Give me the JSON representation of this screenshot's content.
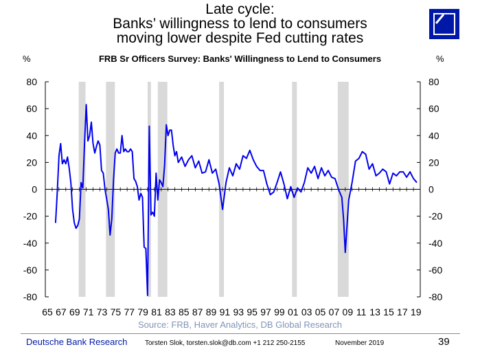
{
  "header": {
    "title_lines": [
      "Late cycle:",
      "Banks’ willingness to lend to consumers",
      "moving lower despite Fed cutting rates"
    ],
    "brand_color": "#0018a8"
  },
  "footer": {
    "brand": "Deutsche Bank Research",
    "contact": "Torsten Slok, torsten.slok@db.com  +1 212 250-2155",
    "date": "November 2019",
    "page": "39"
  },
  "chart_data": {
    "type": "line",
    "title": "FRB Sr Officers Survey: Banks' Willingness to Lend to Consumers",
    "ylabel_left": "%",
    "ylabel_right": "%",
    "source": "Source: FRB, Haver Analytics, DB Global Research",
    "ylim": [
      -80,
      80
    ],
    "yticks": [
      80,
      60,
      40,
      20,
      0,
      -20,
      -40,
      -60,
      -80
    ],
    "xlim": [
      1965,
      2020
    ],
    "xtick_labels": [
      "65",
      "67",
      "69",
      "71",
      "73",
      "75",
      "77",
      "79",
      "81",
      "83",
      "85",
      "87",
      "89",
      "91",
      "93",
      "95",
      "97",
      "99",
      "01",
      "03",
      "05",
      "07",
      "09",
      "11",
      "13",
      "15",
      "17",
      "19"
    ],
    "line_color": "#0000ee",
    "recession_color": "#d9d9d9",
    "recessions": [
      [
        1969.9,
        1970.9
      ],
      [
        1973.9,
        1975.2
      ],
      [
        1980.0,
        1980.5
      ],
      [
        1981.5,
        1982.9
      ],
      [
        1990.5,
        1991.2
      ],
      [
        2001.2,
        2001.9
      ],
      [
        2007.9,
        2009.5
      ]
    ],
    "series": [
      {
        "x": [
          1966.5,
          1966.75,
          1967.0,
          1967.25,
          1967.5,
          1967.75,
          1968.0,
          1968.25,
          1968.5,
          1968.75,
          1969.0,
          1969.25,
          1969.5,
          1969.75,
          1970.0,
          1970.25,
          1970.5,
          1970.75,
          1971.0,
          1971.25,
          1971.5,
          1971.75,
          1972.0,
          1972.25,
          1972.5,
          1972.75,
          1973.0,
          1973.25,
          1973.5,
          1973.75,
          1974.0,
          1974.25,
          1974.5,
          1974.75,
          1975.0,
          1975.25,
          1975.5,
          1975.75,
          1976.0,
          1976.25,
          1976.5,
          1976.75,
          1977.0,
          1977.25,
          1977.5,
          1977.75,
          1978.0,
          1978.25,
          1978.5,
          1978.75,
          1979.0,
          1979.25,
          1979.5,
          1979.75,
          1980.0,
          1980.25,
          1980.5,
          1980.75,
          1981.0,
          1981.25,
          1981.5,
          1981.75,
          1982.0,
          1982.25,
          1982.5,
          1982.75,
          1983.0,
          1983.25,
          1983.5,
          1983.75,
          1984.0,
          1984.25,
          1984.5,
          1984.75,
          1985.0,
          1985.5,
          1986.0,
          1986.5,
          1987.0,
          1987.5,
          1988.0,
          1988.5,
          1989.0,
          1989.5,
          1990.0,
          1990.5,
          1991.0,
          1991.5,
          1992.0,
          1992.5,
          1993.0,
          1993.5,
          1994.0,
          1994.5,
          1995.0,
          1995.5,
          1996.0,
          1996.5,
          1997.0,
          1997.5,
          1998.0,
          1998.5,
          1999.0,
          1999.5,
          2000.0,
          2000.5,
          2001.0,
          2001.5,
          2002.0,
          2002.5,
          2003.0,
          2003.5,
          2004.0,
          2004.5,
          2005.0,
          2005.5,
          2006.0,
          2006.5,
          2007.0,
          2007.5,
          2008.0,
          2008.5,
          2008.75,
          2009.0,
          2009.5,
          2010.0,
          2010.5,
          2011.0,
          2011.5,
          2012.0,
          2012.5,
          2013.0,
          2013.5,
          2014.0,
          2014.5,
          2015.0,
          2015.5,
          2016.0,
          2016.5,
          2017.0,
          2017.5,
          2018.0,
          2018.5,
          2019.0,
          2019.5
        ],
        "y": [
          -25,
          -2,
          25,
          34,
          19,
          22,
          19,
          24,
          16,
          5,
          -15,
          -25,
          -29,
          -27,
          -22,
          5,
          1,
          34,
          63,
          36,
          40,
          50,
          34,
          27,
          32,
          36,
          33,
          14,
          12,
          0,
          -7,
          -15,
          -34,
          -22,
          7,
          27,
          30,
          27,
          27,
          40,
          28,
          30,
          28,
          28,
          30,
          28,
          8,
          6,
          2,
          -8,
          -3,
          -6,
          -43,
          -44,
          -79,
          47,
          -19,
          -17,
          -20,
          12,
          -8,
          7,
          5,
          2,
          18,
          48,
          40,
          44,
          44,
          33,
          25,
          28,
          20,
          22,
          24,
          17,
          22,
          25,
          16,
          21,
          12,
          13,
          22,
          12,
          15,
          4,
          -15,
          5,
          16,
          10,
          19,
          15,
          25,
          23,
          29,
          22,
          17,
          14,
          14,
          4,
          -4,
          -2,
          5,
          13,
          4,
          -7,
          2,
          -6,
          1,
          -2,
          5,
          16,
          12,
          17,
          8,
          16,
          10,
          14,
          9,
          8,
          0,
          -6,
          -22,
          -47,
          -8,
          5,
          21,
          23,
          28,
          26,
          15,
          19,
          10,
          12,
          15,
          13,
          4,
          12,
          10,
          13,
          13,
          9,
          13,
          8,
          5
        ]
      }
    ]
  }
}
